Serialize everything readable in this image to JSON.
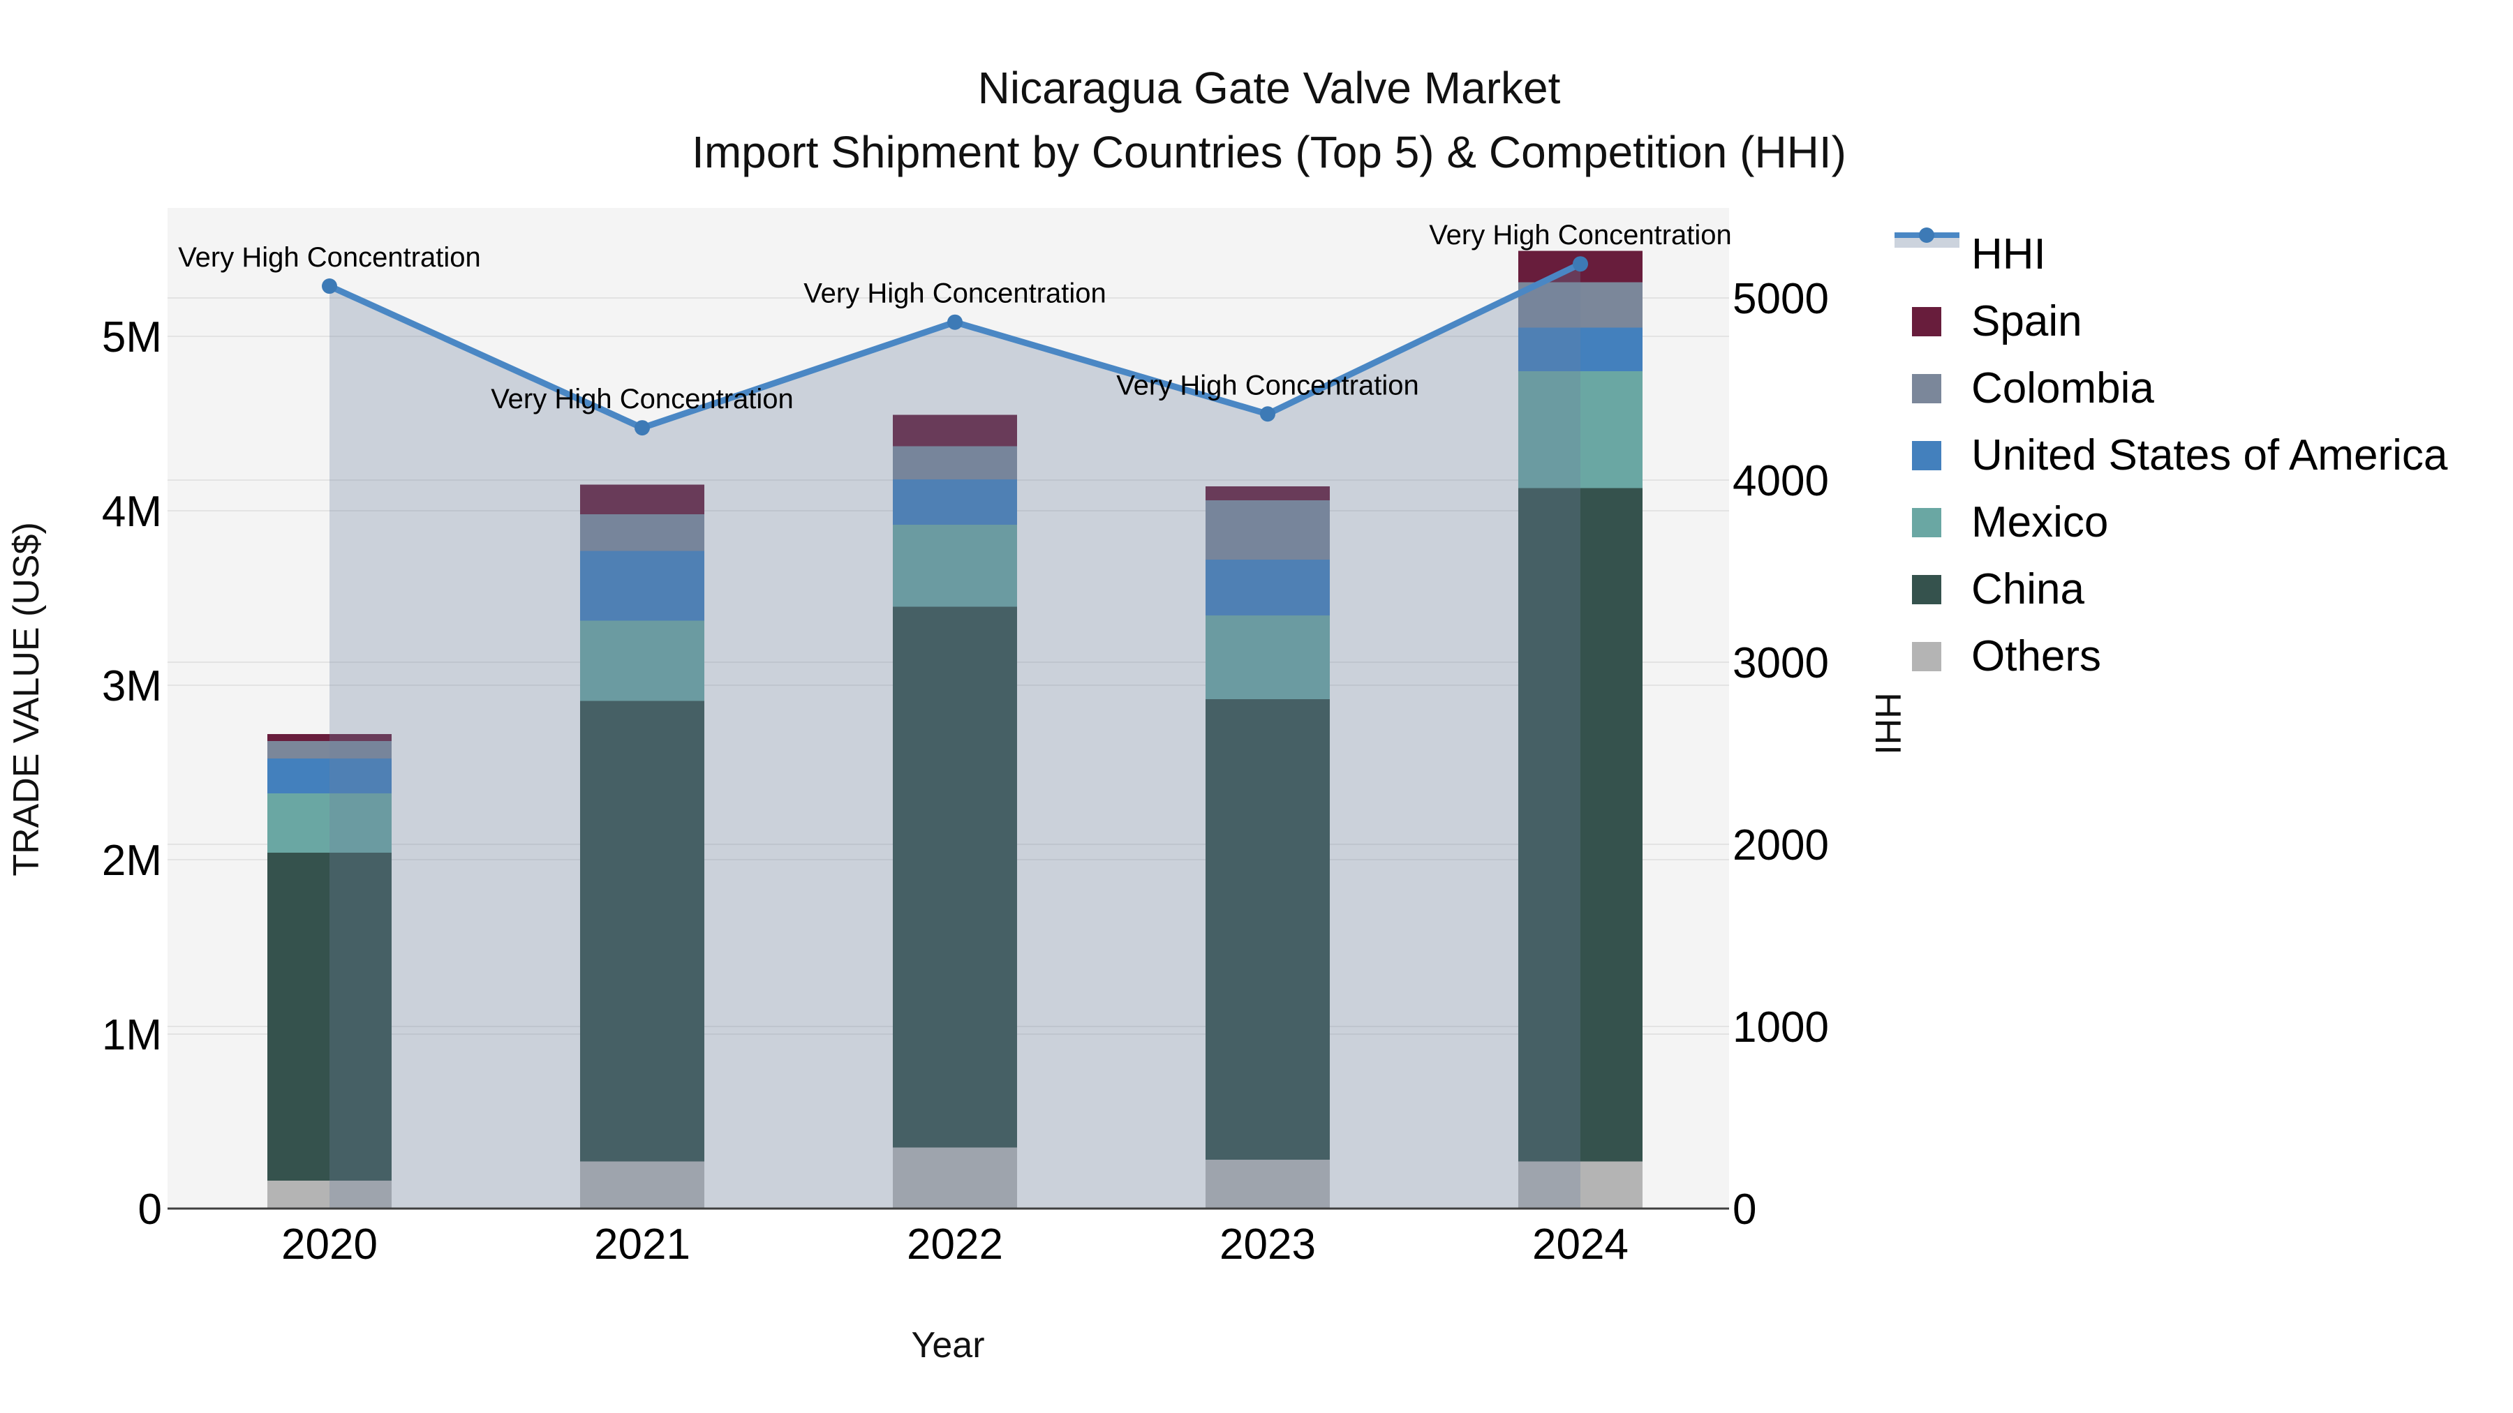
{
  "title": {
    "line1": "Nicaragua Gate Valve Market",
    "line2": "Import Shipment by Countries (Top 5) & Competition (HHI)"
  },
  "chart_data": {
    "type": "bar+line",
    "title": "Nicaragua Gate Valve Market\nImport Shipment by Countries (Top 5) & Competition (HHI)",
    "xlabel": "Year",
    "ylabel_left": "TRADE VALUE (US$)",
    "ylabel_right": "HHI",
    "categories": [
      "2020",
      "2021",
      "2022",
      "2023",
      "2024"
    ],
    "bar_value_unit": "million US$",
    "stack_order_bottom_to_top": [
      "Others",
      "China",
      "Mexico",
      "United States of America",
      "Colombia",
      "Spain"
    ],
    "series": [
      {
        "name": "Others",
        "color": "#b4b4b4",
        "values": [
          0.16,
          0.27,
          0.35,
          0.28,
          0.27
        ]
      },
      {
        "name": "China",
        "color": "#35524d",
        "values": [
          1.88,
          2.64,
          3.1,
          2.64,
          3.86
        ]
      },
      {
        "name": "Mexico",
        "color": "#6aa7a3",
        "values": [
          0.34,
          0.46,
          0.47,
          0.48,
          0.67
        ]
      },
      {
        "name": "United States of America",
        "color": "#4380bd",
        "values": [
          0.2,
          0.4,
          0.26,
          0.32,
          0.25
        ]
      },
      {
        "name": "Colombia",
        "color": "#7b879a",
        "values": [
          0.1,
          0.21,
          0.19,
          0.34,
          0.26
        ]
      },
      {
        "name": "Spain",
        "color": "#681d3c",
        "values": [
          0.04,
          0.17,
          0.18,
          0.08,
          0.18
        ]
      }
    ],
    "line_series": {
      "name": "HHI",
      "color": "#4a87c4",
      "marker_color": "#3d7ab6",
      "area_fill": "rgba(110,130,160,0.30)",
      "values": [
        5065,
        4287,
        4867,
        4363,
        5187
      ],
      "annotations": [
        "Very High Concentration",
        "Very High Concentration",
        "Very High Concentration",
        "Very High Concentration",
        "Very High Concentration"
      ]
    },
    "axes": {
      "left": {
        "ticks": [
          "0",
          "1M",
          "2M",
          "3M",
          "4M",
          "5M"
        ],
        "tick_values": [
          0,
          1,
          2,
          3,
          4,
          5
        ],
        "max": 5.74
      },
      "right": {
        "ticks": [
          "0",
          "1000",
          "2000",
          "3000",
          "4000",
          "5000"
        ],
        "tick_values": [
          0,
          1000,
          2000,
          3000,
          4000,
          5000
        ],
        "max": 5494
      }
    },
    "grid": true,
    "legend_position": "right",
    "legend": [
      {
        "label": "HHI",
        "type": "line",
        "color": "#4a87c4",
        "band_color": "#ccd3dd"
      },
      {
        "label": "Spain",
        "type": "patch",
        "color": "#681d3c"
      },
      {
        "label": "Colombia",
        "type": "patch",
        "color": "#7b879a"
      },
      {
        "label": "United States of America",
        "type": "patch",
        "color": "#4380bd"
      },
      {
        "label": "Mexico",
        "type": "patch",
        "color": "#6aa7a3"
      },
      {
        "label": "China",
        "type": "patch",
        "color": "#35524d"
      },
      {
        "label": "Others",
        "type": "patch",
        "color": "#b4b4b4"
      }
    ],
    "plot_bg": "#f4f4f4",
    "gridline_color": "#e3e3e3",
    "axis_line_color": "#3f3f3f"
  }
}
